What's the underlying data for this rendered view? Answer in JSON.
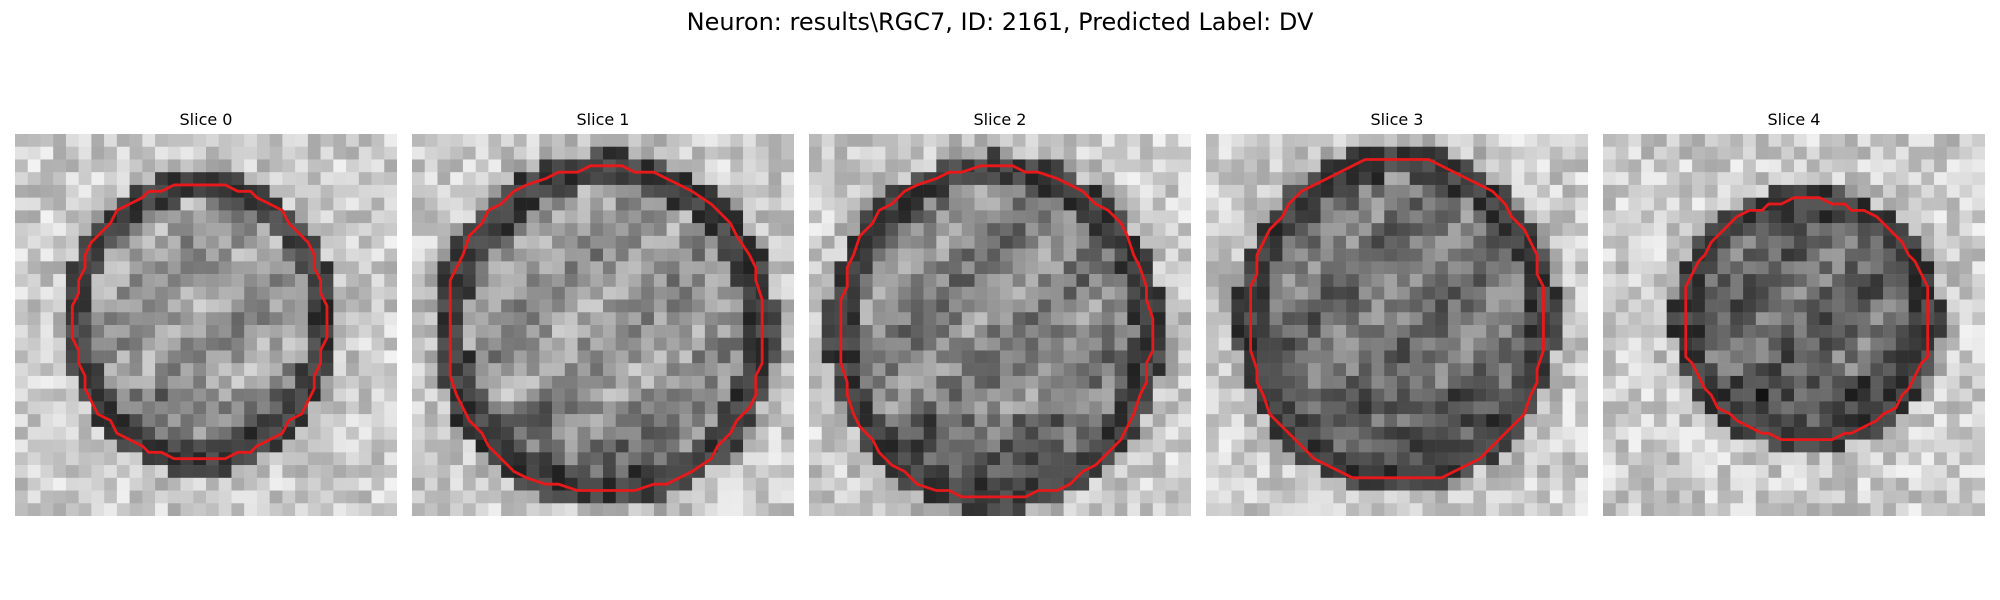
{
  "figure": {
    "title": "Neuron: results\\RGC7, ID: 2161, Predicted Label: DV"
  },
  "slices": [
    {
      "label": "Slice 0"
    },
    {
      "label": "Slice 1"
    },
    {
      "label": "Slice 2"
    },
    {
      "label": "Slice 3"
    },
    {
      "label": "Slice 4"
    }
  ],
  "colors": {
    "contour": "#e8191b",
    "background": "#ffffff"
  }
}
